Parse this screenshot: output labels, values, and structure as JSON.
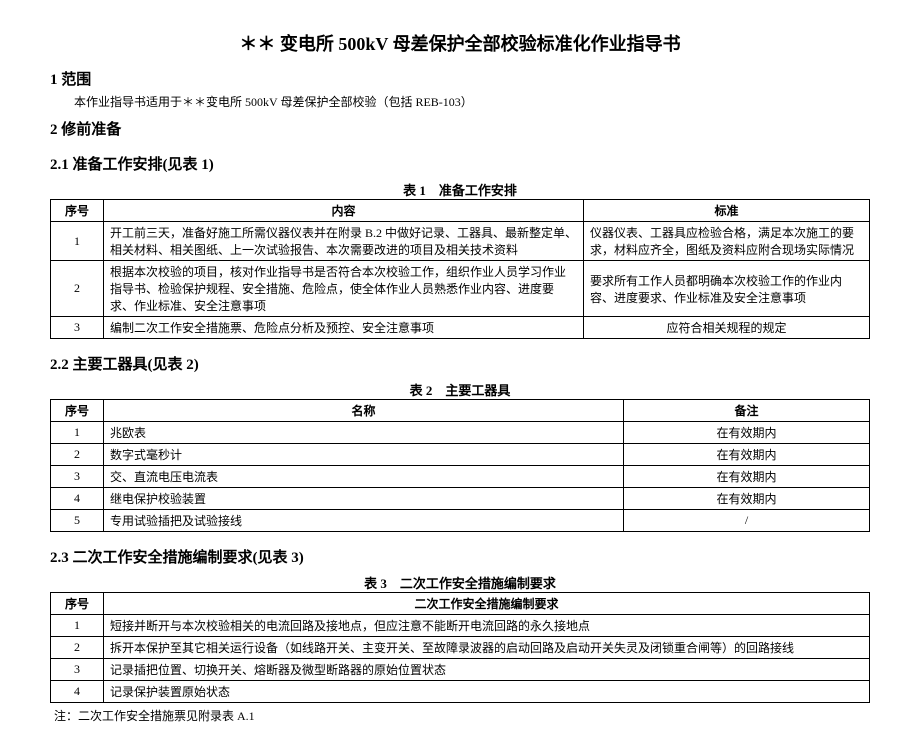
{
  "title": "＊＊ 变电所 500kV 母差保护全部校验标准化作业指导书",
  "sections": {
    "s1": {
      "heading": "1 范围",
      "body": "本作业指导书适用于＊＊变电所 500kV 母差保护全部校验（包括 REB-103）"
    },
    "s2": {
      "heading": "2 修前准备"
    },
    "s21": {
      "heading": "2.1 准备工作安排(见表 1)",
      "caption": "表 1　准备工作安排"
    },
    "s22": {
      "heading": "2.2 主要工器具(见表 2)",
      "caption": "表 2　主要工器具"
    },
    "s23": {
      "heading": "2.3 二次工作安全措施编制要求(见表 3)",
      "caption": "表 3　二次工作安全措施编制要求"
    }
  },
  "table1": {
    "headers": {
      "seq": "序号",
      "content": "内容",
      "standard": "标准"
    },
    "rows": [
      {
        "seq": "1",
        "content": "开工前三天，准备好施工所需仪器仪表并在附录 B.2 中做好记录、工器具、最新整定单、相关材料、相关图纸、上一次试验报告、本次需要改进的项目及相关技术资料",
        "standard": "仪器仪表、工器具应检验合格，满足本次施工的要求，材料应齐全，图纸及资料应附合现场实际情况"
      },
      {
        "seq": "2",
        "content": "根据本次校验的项目，核对作业指导书是否符合本次校验工作，组织作业人员学习作业指导书、检验保护规程、安全措施、危险点，使全体作业人员熟悉作业内容、进度要求、作业标准、安全注意事项",
        "standard": "要求所有工作人员都明确本次校验工作的作业内容、进度要求、作业标准及安全注意事项"
      },
      {
        "seq": "3",
        "content": "编制二次工作安全措施票、危险点分析及预控、安全注意事项",
        "standard": "应符合相关规程的规定"
      }
    ]
  },
  "table2": {
    "headers": {
      "seq": "序号",
      "name": "名称",
      "remark": "备注"
    },
    "rows": [
      {
        "seq": "1",
        "name": "兆欧表",
        "remark": "在有效期内"
      },
      {
        "seq": "2",
        "name": "数字式毫秒计",
        "remark": "在有效期内"
      },
      {
        "seq": "3",
        "name": "交、直流电压电流表",
        "remark": "在有效期内"
      },
      {
        "seq": "4",
        "name": "继电保护校验装置",
        "remark": "在有效期内"
      },
      {
        "seq": "5",
        "name": "专用试验插把及试验接线",
        "remark": "/"
      }
    ]
  },
  "table3": {
    "headers": {
      "seq": "序号",
      "req": "二次工作安全措施编制要求"
    },
    "rows": [
      {
        "seq": "1",
        "req": "短接并断开与本次校验相关的电流回路及接地点，但应注意不能断开电流回路的永久接地点"
      },
      {
        "seq": "2",
        "req": "拆开本保护至其它相关运行设备（如线路开关、主变开关、至故障录波器的启动回路及启动开关失灵及闭锁重合闸等）的回路接线"
      },
      {
        "seq": "3",
        "req": "记录插把位置、切换开关、熔断器及微型断路器的原始位置状态"
      },
      {
        "seq": "4",
        "req": "记录保护装置原始状态"
      }
    ],
    "note": "注：二次工作安全措施票见附录表 A.1"
  },
  "style": {
    "col_widths": {
      "t1_seq": 40,
      "t1_content": 480,
      "t1_standard": 300,
      "t2_seq": 40,
      "t2_name": 520,
      "t2_remark": 260,
      "t3_seq": 40
    }
  }
}
